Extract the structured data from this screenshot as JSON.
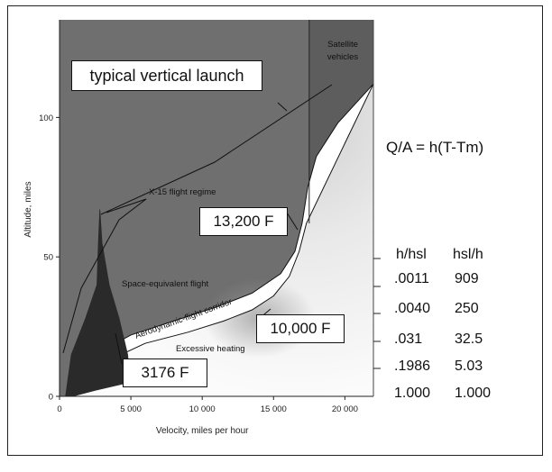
{
  "chart_data": {
    "type": "area",
    "title": "",
    "xlabel": "Velocity, miles per hour",
    "ylabel": "Altitude, miles",
    "xlim": [
      0,
      22000
    ],
    "ylim": [
      0,
      135
    ],
    "x_ticks": [
      0,
      5000,
      10000,
      15000,
      20000
    ],
    "x_tick_labels": [
      "0",
      "5 000",
      "10 000",
      "15 000",
      "20 000"
    ],
    "y_ticks": [
      0,
      50,
      100
    ],
    "y_tick_labels": [
      "0",
      "50",
      "100"
    ],
    "grid": false,
    "regions": {
      "satellite_label": "Satellite vehicles",
      "satellite_boundary_velocity": 17500,
      "x15_label": "X-15 flight regime",
      "space_label": "Space-equivalent flight",
      "corridor_label": "Aerodynamic-flight corridor",
      "heating_label": "Excessive heating"
    },
    "corridor_upper": [
      [
        700,
        0
      ],
      [
        1500,
        7
      ],
      [
        2500,
        15
      ],
      [
        5000,
        22
      ],
      [
        8000,
        27
      ],
      [
        11000,
        32
      ],
      [
        13500,
        37
      ],
      [
        15500,
        44
      ],
      [
        16500,
        52
      ],
      [
        17000,
        62
      ],
      [
        17400,
        75
      ],
      [
        18000,
        86
      ],
      [
        19500,
        98
      ],
      [
        22000,
        112
      ]
    ],
    "corridor_lower": [
      [
        1000,
        0
      ],
      [
        2000,
        6
      ],
      [
        3500,
        13
      ],
      [
        6000,
        19
      ],
      [
        9000,
        23
      ],
      [
        11500,
        27
      ],
      [
        13500,
        31
      ],
      [
        15000,
        36
      ],
      [
        16100,
        43
      ],
      [
        16800,
        52
      ],
      [
        17300,
        62
      ]
    ],
    "x15_spike": [
      [
        400,
        0
      ],
      [
        800,
        15
      ],
      [
        1800,
        28
      ],
      [
        2600,
        40
      ],
      [
        2700,
        55
      ],
      [
        2800,
        67
      ],
      [
        2850,
        67
      ],
      [
        3000,
        55
      ],
      [
        3500,
        40
      ],
      [
        4200,
        28
      ],
      [
        4800,
        15
      ],
      [
        5000,
        5
      ],
      [
        2500,
        2
      ],
      [
        1000,
        0
      ]
    ],
    "annotations": [
      {
        "text": "typical vertical launch",
        "x": 19000,
        "y": 111
      },
      {
        "text": "13,200 F",
        "x": 17000,
        "y": 58
      },
      {
        "text": "10,000 F",
        "x": 14500,
        "y": 38
      },
      {
        "text": "3176 F",
        "x": 4200,
        "y": 10
      }
    ]
  },
  "formula": "Q/A = h(T-Tm)",
  "table": {
    "headers": [
      "h/hsl",
      "hsl/h"
    ],
    "rows": [
      [
        ".0011",
        "909"
      ],
      [
        ".0040",
        "250"
      ],
      [
        ".031",
        "32.5"
      ],
      [
        ".1986",
        "5.03"
      ],
      [
        "1.000",
        "1.000"
      ]
    ]
  },
  "colors": {
    "sky": "#6f6f6f",
    "satellite": "#5d5d5d",
    "x15": "#2a2a2a",
    "corridor": "#ffffff",
    "heating_light": "#f2f2f2"
  }
}
